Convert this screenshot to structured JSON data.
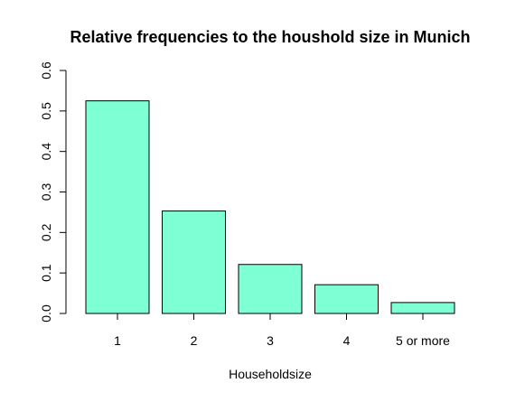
{
  "chart_data": {
    "type": "bar",
    "title": "Relative frequencies to the houshold size in Munich",
    "xlabel": "Householdsize",
    "ylabel": "",
    "categories": [
      "1",
      "2",
      "3",
      "4",
      "5 or more"
    ],
    "values": [
      0.525,
      0.253,
      0.121,
      0.071,
      0.027
    ],
    "ylim": [
      0,
      0.6
    ],
    "yticks": [
      "0.0",
      "0.1",
      "0.2",
      "0.3",
      "0.4",
      "0.5",
      "0.6"
    ],
    "bar_color": "#7FFFD4",
    "bar_border_color": "#000000",
    "grid": false
  }
}
